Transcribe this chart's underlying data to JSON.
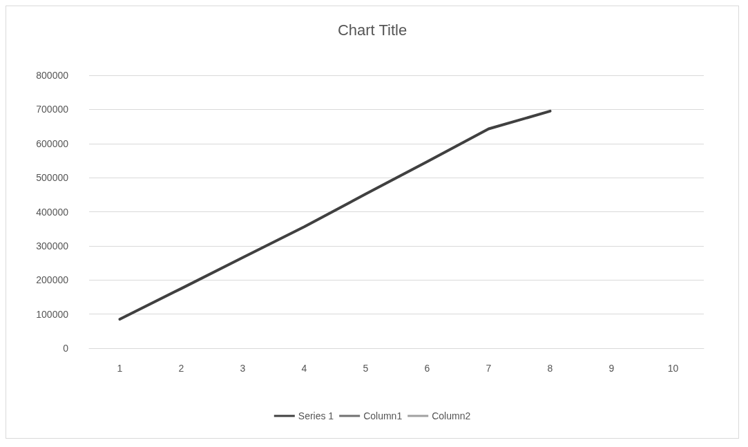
{
  "chart_data": {
    "type": "line",
    "title": "Chart Title",
    "categories": [
      "1",
      "2",
      "3",
      "4",
      "5",
      "6",
      "7",
      "8",
      "9",
      "10"
    ],
    "series": [
      {
        "name": "Series 1",
        "color": "#404040",
        "values": [
          85000,
          175000,
          266000,
          356000,
          452000,
          547000,
          643000,
          695000,
          null,
          null
        ]
      },
      {
        "name": "Column1",
        "color": "#707070",
        "values": [
          null,
          null,
          null,
          null,
          null,
          null,
          null,
          null,
          null,
          null
        ]
      },
      {
        "name": "Column2",
        "color": "#a0a0a0",
        "values": [
          null,
          null,
          null,
          null,
          null,
          null,
          null,
          null,
          null,
          null
        ]
      }
    ],
    "ylim": [
      0,
      800000
    ],
    "yticks": [
      0,
      100000,
      200000,
      300000,
      400000,
      500000,
      600000,
      700000,
      800000
    ],
    "grid": "y",
    "legend": "bottom",
    "marker": "none",
    "line_style": "solid"
  }
}
